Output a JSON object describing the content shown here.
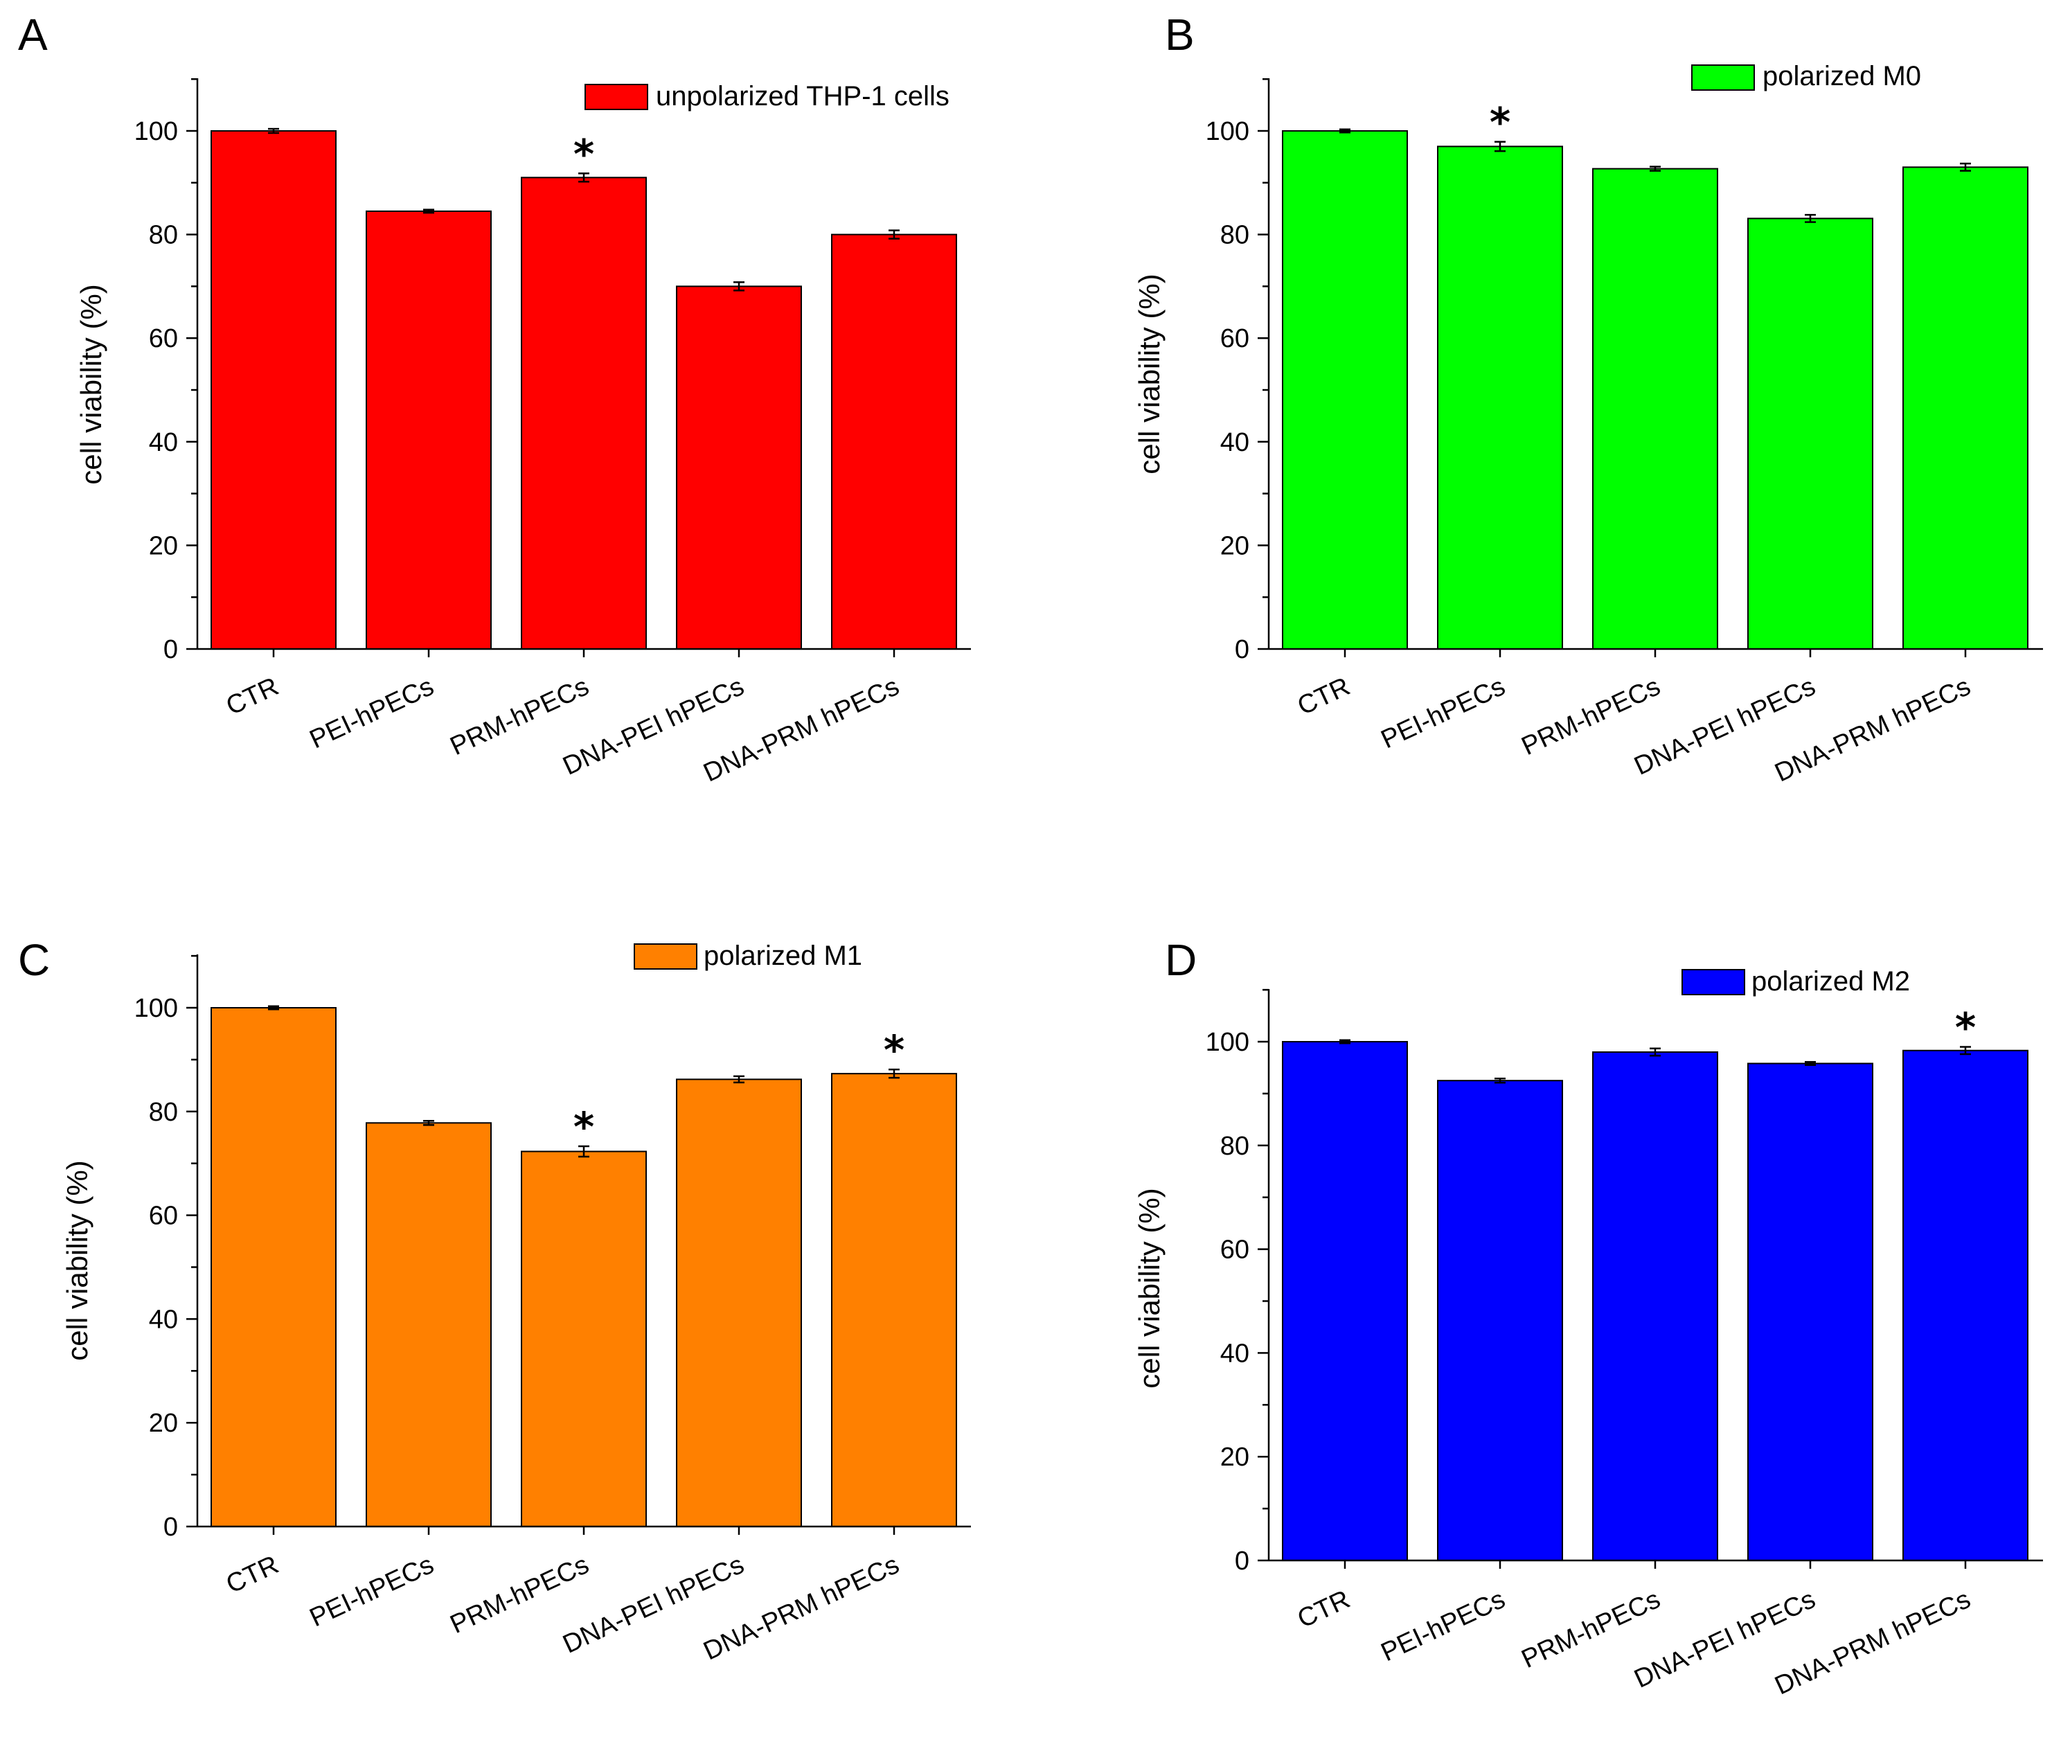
{
  "chart_data": [
    {
      "panel": "A",
      "type": "bar",
      "color": "#ff0000",
      "legend": "unpolarized THP-1 cells",
      "ylabel": "cell viability (%)",
      "xlabel": "",
      "ylim": [
        0,
        110
      ],
      "yticks": [
        "0",
        "20",
        "40",
        "60",
        "80",
        "100"
      ],
      "categories": [
        "CTR",
        "PEI-hPECs",
        "PRM-hPECs",
        "DNA-PEI hPECs",
        "DNA-PRM hPECs"
      ],
      "values": [
        100,
        84.5,
        91,
        70,
        80
      ],
      "errors": [
        0.4,
        0.3,
        0.8,
        0.8,
        0.8
      ],
      "significance": [
        "",
        "",
        "*",
        "",
        ""
      ]
    },
    {
      "panel": "B",
      "type": "bar",
      "color": "#00ff00",
      "legend": "polarized M0",
      "ylabel": "cell viability (%)",
      "xlabel": "",
      "ylim": [
        0,
        110
      ],
      "yticks": [
        "0",
        "20",
        "40",
        "60",
        "80",
        "100"
      ],
      "categories": [
        "CTR",
        "PEI-hPECs",
        "PRM-hPECs",
        "DNA-PEI hPECs",
        "DNA-PRM hPECs"
      ],
      "values": [
        100,
        97,
        92.7,
        83.1,
        93
      ],
      "errors": [
        0.3,
        0.9,
        0.4,
        0.7,
        0.7
      ],
      "significance": [
        "",
        "*",
        "",
        "",
        ""
      ]
    },
    {
      "panel": "C",
      "type": "bar",
      "color": "#ff8000",
      "legend": "polarized M1",
      "ylabel": "cell viability (%)",
      "xlabel": "",
      "ylim": [
        0,
        110
      ],
      "yticks": [
        "0",
        "20",
        "40",
        "60",
        "80",
        "100"
      ],
      "categories": [
        "CTR",
        "PEI-hPECs",
        "PRM-hPECs",
        "DNA-PEI hPECs",
        "DNA-PRM hPECs"
      ],
      "values": [
        100,
        77.8,
        72.3,
        86.2,
        87.3
      ],
      "errors": [
        0.3,
        0.4,
        1.0,
        0.6,
        0.8
      ],
      "significance": [
        "",
        "",
        "*",
        "",
        "*"
      ]
    },
    {
      "panel": "D",
      "type": "bar",
      "color": "#0000ff",
      "legend": "polarized M2",
      "ylabel": "cell viability (%)",
      "xlabel": "",
      "ylim": [
        0,
        110
      ],
      "yticks": [
        "0",
        "20",
        "40",
        "60",
        "80",
        "100"
      ],
      "categories": [
        "CTR",
        "PEI-hPECs",
        "PRM-hPECs",
        "DNA-PEI hPECs",
        "DNA-PRM hPECs"
      ],
      "values": [
        100,
        92.5,
        98,
        95.8,
        98.3
      ],
      "errors": [
        0.3,
        0.4,
        0.7,
        0.3,
        0.7
      ],
      "significance": [
        "",
        "",
        "",
        "",
        "*"
      ]
    }
  ]
}
